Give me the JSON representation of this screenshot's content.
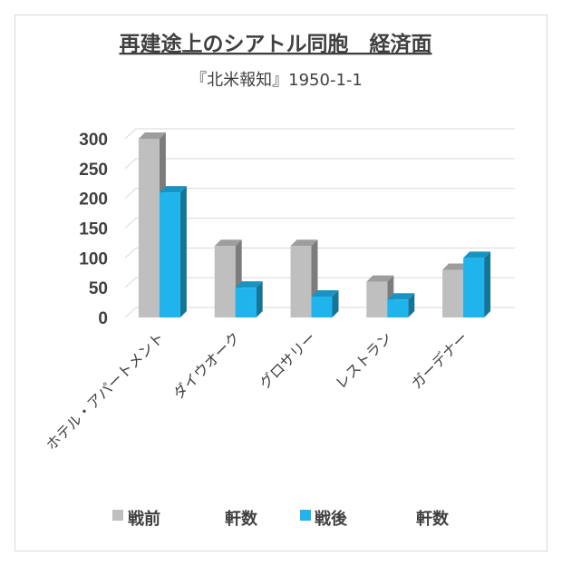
{
  "chart_data": {
    "type": "bar",
    "title": "再建途上のシアトル同胞　経済面",
    "subtitle": "『北米報知』1950-1-1",
    "categories": [
      "ホテル・アパートメント",
      "ダイウオーク",
      "グロサリー",
      "レストラン",
      "ガーデナー"
    ],
    "series": [
      {
        "name": "戦前　　　軒数",
        "values": [
          300,
          120,
          120,
          60,
          80
        ],
        "color": "#bfbfbf"
      },
      {
        "name": "戦後　　　軒数",
        "values": [
          210,
          50,
          35,
          30,
          100
        ],
        "color": "#1fb4ec"
      }
    ],
    "yticks": [
      "0",
      "50",
      "100",
      "150",
      "200",
      "250",
      "300"
    ],
    "ylim": [
      0,
      300
    ],
    "grid": true,
    "legend_position": "bottom",
    "effect": "3d"
  },
  "legend": {
    "prewar_name": "戦前",
    "prewar_unit": "軒数",
    "postwar_name": "戦後",
    "postwar_unit": "軒数"
  }
}
